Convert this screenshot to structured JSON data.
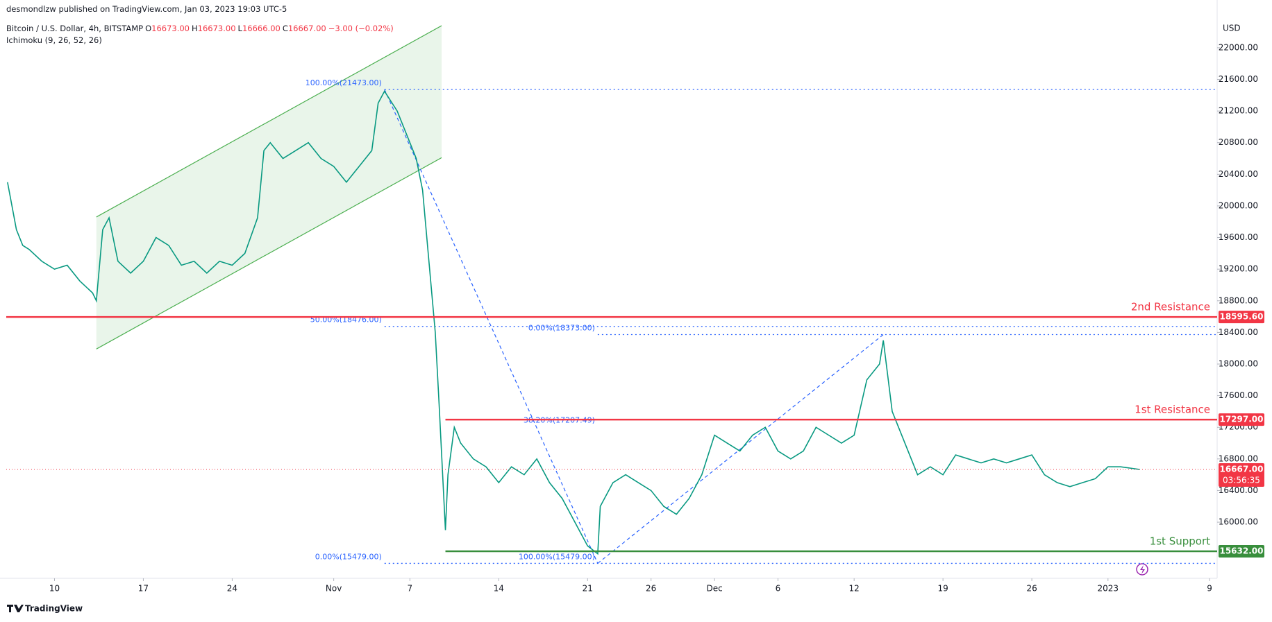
{
  "header": {
    "published": "desmondlzw published on TradingView.com, Jan 03, 2023 19:03 UTC-5",
    "symbol": "Bitcoin / U.S. Dollar, 4h, BITSTAMP",
    "ohlc": [
      {
        "key": "O",
        "value": "16673.00"
      },
      {
        "key": "H",
        "value": "16673.00"
      },
      {
        "key": "L",
        "value": "16666.00"
      },
      {
        "key": "C",
        "value": "16667.00"
      }
    ],
    "change": "−3.00 (−0.02%)",
    "indicator": "Ichimoku (9, 26, 52, 26)",
    "currency": "USD",
    "brand": "TradingView"
  },
  "chart_data": {
    "type": "line",
    "color": "#089981",
    "x": [
      6.3,
      7,
      7.5,
      8,
      9,
      10,
      11,
      12,
      13,
      13.3,
      13.8,
      14.3,
      15,
      16,
      17,
      18,
      19,
      20,
      21,
      22,
      23,
      24,
      25,
      26,
      26.5,
      27,
      28,
      29,
      30,
      31,
      32,
      33,
      34,
      35,
      35.5,
      36,
      37,
      38,
      38.5,
      39,
      39.5,
      40,
      40.3,
      40.8,
      41,
      41.5,
      42,
      43,
      44,
      45,
      46,
      47,
      48,
      49,
      50,
      51,
      52,
      52.8,
      53,
      54,
      55,
      56,
      57,
      58,
      59,
      60,
      61,
      62,
      63,
      64,
      65,
      66,
      67,
      68,
      69,
      70,
      71,
      72,
      73,
      74,
      75,
      75.3,
      76,
      77,
      78,
      79,
      80,
      81,
      82,
      83,
      84,
      85,
      86,
      87,
      88,
      89,
      90,
      91,
      92,
      93,
      94,
      95.5
    ],
    "values": [
      20300,
      19700,
      19500,
      19450,
      19300,
      19200,
      19250,
      19050,
      18900,
      18800,
      19700,
      19850,
      19300,
      19150,
      19300,
      19600,
      19500,
      19250,
      19300,
      19150,
      19300,
      19250,
      19400,
      19850,
      20700,
      20800,
      20600,
      20700,
      20800,
      20600,
      20500,
      20300,
      20500,
      20700,
      21300,
      21450,
      21200,
      20800,
      20600,
      20200,
      19300,
      18400,
      17500,
      15900,
      16600,
      17200,
      17000,
      16800,
      16700,
      16500,
      16700,
      16600,
      16800,
      16500,
      16300,
      16000,
      15700,
      15600,
      16200,
      16500,
      16600,
      16500,
      16400,
      16200,
      16100,
      16300,
      16600,
      17100,
      17000,
      16900,
      17100,
      17200,
      16900,
      16800,
      16900,
      17200,
      17100,
      17000,
      17100,
      17800,
      18000,
      18300,
      17400,
      17000,
      16600,
      16700,
      16600,
      16850,
      16800,
      16750,
      16800,
      16750,
      16800,
      16850,
      16600,
      16500,
      16450,
      16500,
      16550,
      16700,
      16700,
      16667
    ],
    "xlim": [
      6.2,
      101.6
    ],
    "ylim": [
      15290,
      22350
    ],
    "xticks": [
      10,
      17,
      24,
      {
        "value": 32,
        "label": "Nov"
      },
      {
        "value": 38,
        "label": "7"
      },
      {
        "value": 45,
        "label": "14"
      },
      {
        "value": 52,
        "label": "21"
      },
      {
        "value": 57,
        "label": "26"
      },
      {
        "value": 62,
        "label": "Dec"
      },
      {
        "value": 67,
        "label": "6"
      },
      {
        "value": 73,
        "label": "12"
      },
      {
        "value": 80,
        "label": "19"
      },
      {
        "value": 87,
        "label": "26"
      },
      {
        "value": 93,
        "label": "2023"
      },
      {
        "value": 101,
        "label": "9"
      }
    ],
    "yticks": [
      {
        "value": 16000,
        "label": "16000.00"
      },
      {
        "value": 16400,
        "label": "16400.00"
      },
      {
        "value": 16800,
        "label": "16800.00"
      },
      {
        "value": 17200,
        "label": "17200.00"
      },
      {
        "value": 17600,
        "label": "17600.00"
      },
      {
        "value": 18000,
        "label": "18000.00"
      },
      {
        "value": 18400,
        "label": "18400.00"
      },
      {
        "value": 18800,
        "label": "18800.00"
      },
      {
        "value": 19200,
        "label": "19200.00"
      },
      {
        "value": 19600,
        "label": "19600.00"
      },
      {
        "value": 20000,
        "label": "20000.00"
      },
      {
        "value": 20400,
        "label": "20400.00"
      },
      {
        "value": 20800,
        "label": "20800.00"
      },
      {
        "value": 21200,
        "label": "21200.00"
      },
      {
        "value": 21600,
        "label": "21600.00"
      },
      {
        "value": 22000,
        "label": "22000.00"
      }
    ],
    "grid": false,
    "channel": {
      "x": [
        13.3,
        40.5
      ],
      "upper": [
        19860,
        22280
      ],
      "lower": [
        18190,
        20610
      ],
      "color": "#4caf50"
    },
    "trend_lines": [
      {
        "x": [
          36,
          52.8
        ],
        "y": [
          21473,
          15479
        ]
      },
      {
        "x": [
          52.8,
          75.3
        ],
        "y": [
          15479,
          18373
        ]
      }
    ],
    "fib_levels": [
      {
        "label": "100.00%(21473.00)",
        "value": 21473,
        "x": [
          36,
          101.6
        ]
      },
      {
        "label": "50.00%(18476.00)",
        "value": 18476,
        "x": [
          36,
          101.6
        ]
      },
      {
        "label": "0.00%(15479.00)",
        "value": 15479,
        "x": [
          36,
          101.6
        ]
      },
      {
        "label": "0.00%(18373.00)",
        "value": 18373,
        "x": [
          52.8,
          101.6
        ]
      },
      {
        "label": "38.20%(17207.49)",
        "value": 17207.49,
        "x": [
          52.8,
          52.8
        ]
      },
      {
        "label": "100.00%(15479.00)",
        "value": 15479,
        "x": [
          52.8,
          52.8
        ]
      }
    ],
    "levels": [
      {
        "name": "2nd Resistance",
        "value": 18595.6,
        "label": "18595.60",
        "color": "#f23645",
        "x": [
          6.2,
          101.6
        ]
      },
      {
        "name": "1st Resistance",
        "value": 17297,
        "label": "17297.00",
        "color": "#f23645",
        "x": [
          40.8,
          101.6
        ]
      },
      {
        "name": "1st Support",
        "value": 15632,
        "label": "15632.00",
        "color": "#388e3c",
        "x": [
          40.8,
          101.6
        ]
      }
    ],
    "last_price": {
      "value": 16667,
      "label": "16667.00",
      "countdown": "03:56:35",
      "color": "#f23645"
    }
  }
}
